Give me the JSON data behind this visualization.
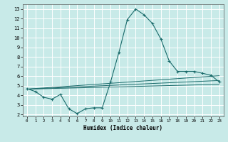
{
  "xlabel": "Humidex (Indice chaleur)",
  "ylabel": "",
  "bg_color": "#c8eae8",
  "line_color": "#1a6b6b",
  "grid_color": "#ffffff",
  "xlim": [
    -0.5,
    23.5
  ],
  "ylim": [
    1.8,
    13.5
  ],
  "xticks": [
    0,
    1,
    2,
    3,
    4,
    5,
    6,
    7,
    8,
    9,
    10,
    11,
    12,
    13,
    14,
    15,
    16,
    17,
    18,
    19,
    20,
    21,
    22,
    23
  ],
  "yticks": [
    2,
    3,
    4,
    5,
    6,
    7,
    8,
    9,
    10,
    11,
    12,
    13
  ],
  "line1_x": [
    0,
    1,
    2,
    3,
    4,
    5,
    6,
    7,
    8,
    9,
    10,
    11,
    12,
    13,
    14,
    15,
    16,
    17,
    18,
    19,
    20,
    21,
    22,
    23
  ],
  "line1_y": [
    4.7,
    4.4,
    3.8,
    3.6,
    4.1,
    2.6,
    2.1,
    2.6,
    2.7,
    2.7,
    5.4,
    8.5,
    11.9,
    13.0,
    12.4,
    11.5,
    9.9,
    7.6,
    6.5,
    6.5,
    6.5,
    6.3,
    6.1,
    5.4
  ],
  "line2_x": [
    0,
    23
  ],
  "line2_y": [
    4.65,
    5.15
  ],
  "line3_x": [
    0,
    23
  ],
  "line3_y": [
    4.65,
    5.55
  ],
  "line4_x": [
    0,
    23
  ],
  "line4_y": [
    4.65,
    6.05
  ]
}
